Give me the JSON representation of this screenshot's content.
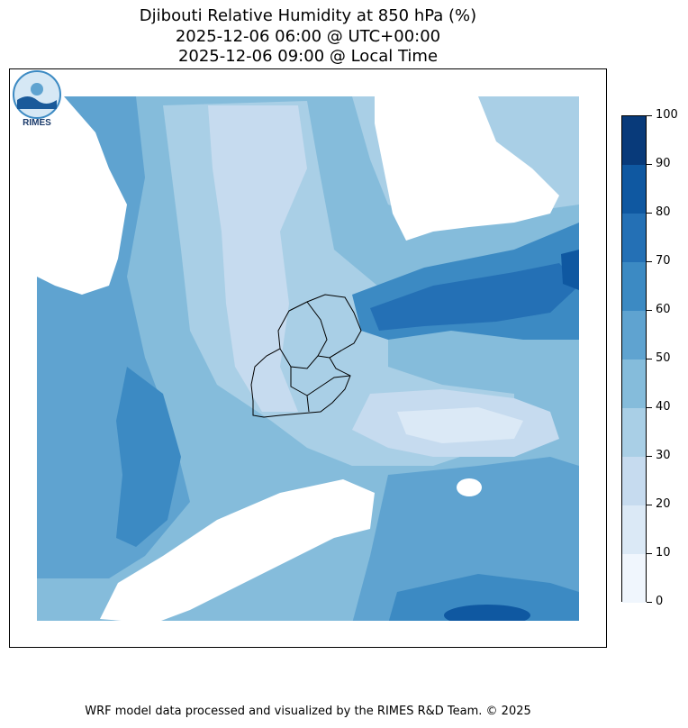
{
  "title": {
    "line1": "Djibouti Relative Humidity at 850 hPa (%)",
    "line2": "2025-12-06 06:00 @ UTC+00:00",
    "line3": "2025-12-06 09:00 @ Local Time"
  },
  "colorbar": {
    "labels": [
      "0",
      "10",
      "20",
      "30",
      "40",
      "50",
      "60",
      "70",
      "80",
      "90",
      "100"
    ],
    "colors": [
      "#f0f6fd",
      "#dbe9f6",
      "#c6dbef",
      "#a9cfe6",
      "#85bcdb",
      "#5fa3d0",
      "#3c8ac3",
      "#2470b5",
      "#0f58a1",
      "#083a7a"
    ]
  },
  "logo": {
    "text": "RIMES"
  },
  "footer": "WRF model data processed and visualized by the RIMES R&D Team. © 2025"
}
